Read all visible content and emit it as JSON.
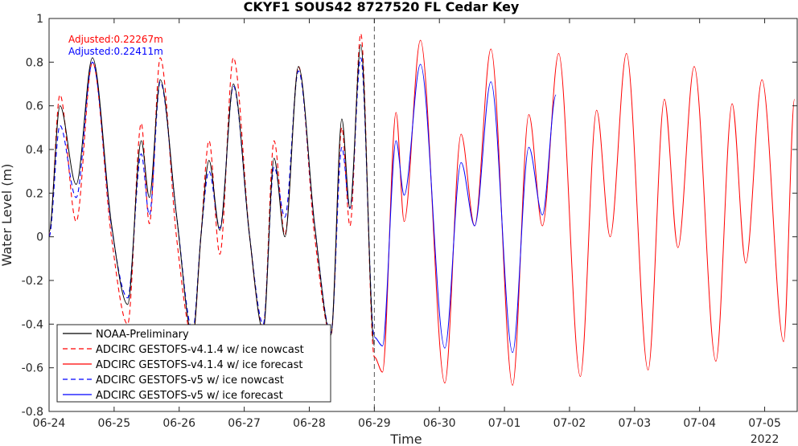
{
  "chart_data": {
    "type": "line",
    "title": "CKYF1 SOUS42 8727520 FL Cedar Key",
    "xlabel": "Time",
    "ylabel": "Water Level (m)",
    "year_label": "2022",
    "x_ticks": [
      "06-24",
      "06-25",
      "06-26",
      "06-27",
      "06-28",
      "06-29",
      "06-30",
      "07-01",
      "07-02",
      "07-03",
      "07-04",
      "07-05"
    ],
    "xlim": [
      "2022-06-24 00:00",
      "2022-07-05 12:00"
    ],
    "ylim": [
      -0.8,
      1.0
    ],
    "y_ticks": [
      -0.8,
      -0.6,
      -0.4,
      -0.2,
      0,
      0.2,
      0.4,
      0.6,
      0.8,
      1
    ],
    "y_tick_labels": [
      "-0.8",
      "-0.6",
      "-0.4",
      "-0.2",
      "0",
      "0.2",
      "0.4",
      "0.6",
      "0.8",
      "1"
    ],
    "grid": false,
    "legend_position": "bottom-left",
    "nowcast_forecast_divider": "2022-06-29 00:00",
    "annotations": [
      {
        "text": "Adjusted:0.22267m",
        "color": "#ff0000"
      },
      {
        "text": "Adjusted:0.22411m",
        "color": "#0000ff"
      }
    ],
    "series": [
      {
        "name": "NOAA-Preliminary",
        "color": "#000000",
        "dash": "solid",
        "points": [
          [
            "2022-06-24 00:00",
            0.02
          ],
          [
            "2022-06-24 04:00",
            0.6
          ],
          [
            "2022-06-24 10:00",
            0.24
          ],
          [
            "2022-06-24 16:00",
            0.82
          ],
          [
            "2022-06-24 23:00",
            0.06
          ],
          [
            "2022-06-25 05:00",
            -0.31
          ],
          [
            "2022-06-25 10:00",
            0.44
          ],
          [
            "2022-06-25 13:00",
            0.18
          ],
          [
            "2022-06-25 17:00",
            0.72
          ],
          [
            "2022-06-25 23:00",
            0.1
          ],
          [
            "2022-06-26 05:00",
            -0.46
          ],
          [
            "2022-06-26 08:00",
            0.0
          ],
          [
            "2022-06-26 11:00",
            0.35
          ],
          [
            "2022-06-26 15:00",
            0.03
          ],
          [
            "2022-06-26 20:00",
            0.7
          ],
          [
            "2022-06-27 02:00",
            0.0
          ],
          [
            "2022-06-27 07:00",
            -0.43
          ],
          [
            "2022-06-27 11:00",
            0.36
          ],
          [
            "2022-06-27 15:00",
            0.0
          ],
          [
            "2022-06-27 20:00",
            0.78
          ],
          [
            "2022-06-28 02:00",
            0.05
          ],
          [
            "2022-06-28 08:00",
            -0.45
          ],
          [
            "2022-06-28 12:00",
            0.54
          ],
          [
            "2022-06-28 15:00",
            0.13
          ],
          [
            "2022-06-28 19:00",
            0.88
          ],
          [
            "2022-06-29 00:00",
            -0.5
          ]
        ]
      },
      {
        "name": "ADCIRC GESTOFS-v4.1.4 w/ ice nowcast",
        "color": "#ff0000",
        "dash": "dashed",
        "points": [
          [
            "2022-06-24 00:00",
            0.0
          ],
          [
            "2022-06-24 04:00",
            0.65
          ],
          [
            "2022-06-24 10:00",
            0.07
          ],
          [
            "2022-06-24 16:00",
            0.8
          ],
          [
            "2022-06-24 23:00",
            0.0
          ],
          [
            "2022-06-25 05:00",
            -0.4
          ],
          [
            "2022-06-25 10:00",
            0.52
          ],
          [
            "2022-06-25 13:00",
            0.06
          ],
          [
            "2022-06-25 17:00",
            0.82
          ],
          [
            "2022-06-25 23:00",
            0.0
          ],
          [
            "2022-06-26 05:00",
            -0.46
          ],
          [
            "2022-06-26 08:00",
            0.0
          ],
          [
            "2022-06-26 11:00",
            0.44
          ],
          [
            "2022-06-26 15:00",
            -0.08
          ],
          [
            "2022-06-26 20:00",
            0.82
          ],
          [
            "2022-06-27 02:00",
            0.0
          ],
          [
            "2022-06-27 07:00",
            -0.42
          ],
          [
            "2022-06-27 11:00",
            0.44
          ],
          [
            "2022-06-27 15:00",
            0.01
          ],
          [
            "2022-06-27 20:00",
            0.78
          ],
          [
            "2022-06-28 02:00",
            0.0
          ],
          [
            "2022-06-28 08:00",
            -0.45
          ],
          [
            "2022-06-28 12:00",
            0.5
          ],
          [
            "2022-06-28 15:00",
            0.05
          ],
          [
            "2022-06-28 19:00",
            0.93
          ],
          [
            "2022-06-29 00:00",
            -0.55
          ]
        ]
      },
      {
        "name": "ADCIRC GESTOFS-v4.1.4 w/ ice forecast",
        "color": "#ff0000",
        "dash": "solid",
        "points": [
          [
            "2022-06-29 00:00",
            -0.55
          ],
          [
            "2022-06-29 03:00",
            -0.62
          ],
          [
            "2022-06-29 08:00",
            0.57
          ],
          [
            "2022-06-29 11:00",
            0.07
          ],
          [
            "2022-06-29 17:00",
            0.9
          ],
          [
            "2022-06-30 02:00",
            -0.67
          ],
          [
            "2022-06-30 08:00",
            0.47
          ],
          [
            "2022-06-30 13:00",
            0.05
          ],
          [
            "2022-06-30 19:00",
            0.86
          ],
          [
            "2022-07-01 03:00",
            -0.68
          ],
          [
            "2022-07-01 09:00",
            0.56
          ],
          [
            "2022-07-01 14:00",
            0.05
          ],
          [
            "2022-07-01 20:00",
            0.84
          ],
          [
            "2022-07-02 04:00",
            -0.64
          ],
          [
            "2022-07-02 10:00",
            0.58
          ],
          [
            "2022-07-02 15:00",
            0.0
          ],
          [
            "2022-07-02 21:00",
            0.84
          ],
          [
            "2022-07-03 05:00",
            -0.61
          ],
          [
            "2022-07-03 11:00",
            0.63
          ],
          [
            "2022-07-03 16:00",
            -0.05
          ],
          [
            "2022-07-03 22:00",
            0.78
          ],
          [
            "2022-07-04 06:00",
            -0.57
          ],
          [
            "2022-07-04 12:00",
            0.61
          ],
          [
            "2022-07-04 17:00",
            -0.12
          ],
          [
            "2022-07-04 23:00",
            0.72
          ],
          [
            "2022-07-05 07:00",
            -0.48
          ],
          [
            "2022-07-05 11:00",
            0.63
          ]
        ]
      },
      {
        "name": "ADCIRC GESTOFS-v5 w/ ice nowcast",
        "color": "#0000ff",
        "dash": "dashed",
        "points": [
          [
            "2022-06-24 00:00",
            0.0
          ],
          [
            "2022-06-24 04:00",
            0.51
          ],
          [
            "2022-06-24 10:00",
            0.18
          ],
          [
            "2022-06-24 16:00",
            0.8
          ],
          [
            "2022-06-24 23:00",
            0.05
          ],
          [
            "2022-06-25 05:00",
            -0.28
          ],
          [
            "2022-06-25 10:00",
            0.38
          ],
          [
            "2022-06-25 13:00",
            0.1
          ],
          [
            "2022-06-25 17:00",
            0.71
          ],
          [
            "2022-06-25 23:00",
            0.1
          ],
          [
            "2022-06-26 05:00",
            -0.43
          ],
          [
            "2022-06-26 08:00",
            0.0
          ],
          [
            "2022-06-26 11:00",
            0.3
          ],
          [
            "2022-06-26 15:00",
            0.04
          ],
          [
            "2022-06-26 20:00",
            0.69
          ],
          [
            "2022-06-27 02:00",
            0.0
          ],
          [
            "2022-06-27 07:00",
            -0.4
          ],
          [
            "2022-06-27 11:00",
            0.32
          ],
          [
            "2022-06-27 15:00",
            0.09
          ],
          [
            "2022-06-27 20:00",
            0.76
          ],
          [
            "2022-06-28 02:00",
            0.05
          ],
          [
            "2022-06-28 08:00",
            -0.44
          ],
          [
            "2022-06-28 12:00",
            0.41
          ],
          [
            "2022-06-28 15:00",
            0.13
          ],
          [
            "2022-06-28 19:00",
            0.82
          ],
          [
            "2022-06-29 00:00",
            -0.46
          ]
        ]
      },
      {
        "name": "ADCIRC GESTOFS-v5 w/ ice forecast",
        "color": "#0000ff",
        "dash": "solid",
        "points": [
          [
            "2022-06-29 00:00",
            -0.46
          ],
          [
            "2022-06-29 03:00",
            -0.5
          ],
          [
            "2022-06-29 08:00",
            0.44
          ],
          [
            "2022-06-29 11:00",
            0.19
          ],
          [
            "2022-06-29 17:00",
            0.79
          ],
          [
            "2022-06-30 02:00",
            -0.51
          ],
          [
            "2022-06-30 08:00",
            0.34
          ],
          [
            "2022-06-30 13:00",
            0.05
          ],
          [
            "2022-06-30 19:00",
            0.71
          ],
          [
            "2022-07-01 03:00",
            -0.53
          ],
          [
            "2022-07-01 09:00",
            0.41
          ],
          [
            "2022-07-01 14:00",
            0.1
          ],
          [
            "2022-07-01 19:00",
            0.65
          ]
        ]
      }
    ]
  }
}
